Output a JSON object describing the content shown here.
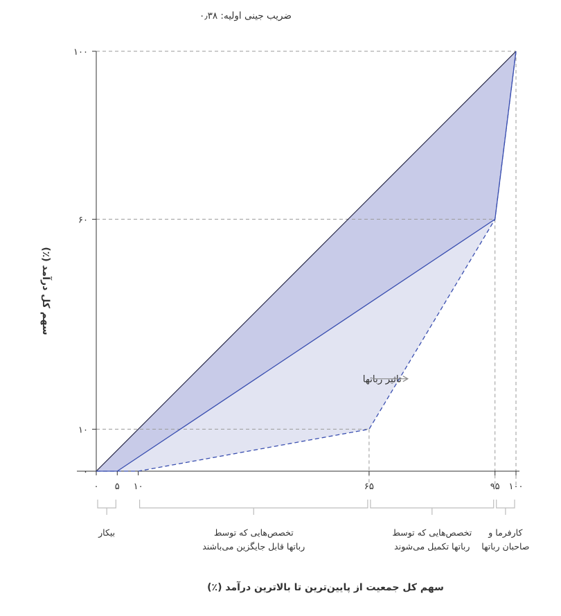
{
  "chart_data": {
    "type": "area",
    "subtitle": "ضریب جینی اولیه: ۰٫۳۸",
    "xlabel": "سهم کل جمعیت از پایین‌ترین تا بالاترین درآمد (٪)",
    "ylabel": "سهم کل درآمد (٪)",
    "xlim": [
      0,
      100
    ],
    "ylim": [
      0,
      100
    ],
    "x_ticks": [
      {
        "value": 0,
        "label": "۰"
      },
      {
        "value": 5,
        "label": "۵"
      },
      {
        "value": 10,
        "label": "۱۰"
      },
      {
        "value": 65,
        "label": "۶۵"
      },
      {
        "value": 95,
        "label": "۹۵"
      },
      {
        "value": 100,
        "label": "۱۰۰"
      }
    ],
    "y_ticks": [
      {
        "value": 0,
        "label": "۰"
      },
      {
        "value": 10,
        "label": "۱۰"
      },
      {
        "value": 60,
        "label": "۶۰"
      },
      {
        "value": 100,
        "label": "۱۰۰"
      }
    ],
    "series": [
      {
        "style": "equality-line",
        "color": "#1a1a3a",
        "x": [
          0,
          100
        ],
        "y": [
          0,
          100
        ]
      },
      {
        "style": "solid",
        "color": "#3a4fb0",
        "x": [
          0,
          5,
          95,
          100
        ],
        "y": [
          0,
          0,
          60,
          100
        ]
      },
      {
        "style": "dashed",
        "color": "#3a4fb0",
        "x": [
          0,
          10,
          65,
          95,
          100
        ],
        "y": [
          0,
          0,
          10,
          60,
          100
        ]
      }
    ],
    "fills": {
      "inner": "#c8cbe8",
      "outer": "#e2e4f2"
    },
    "groups": [
      {
        "from": 0,
        "to": 5,
        "lines": [
          "بیکار"
        ]
      },
      {
        "from": 10,
        "to": 65,
        "lines": [
          "تخصص‌هایی که توسط",
          "رباتها قابل جایگزین می‌باشند"
        ]
      },
      {
        "from": 65,
        "to": 95,
        "lines": [
          "تخصص‌هایی که توسط",
          "رباتها تکمیل می‌شوند"
        ]
      },
      {
        "from": 95,
        "to": 100,
        "lines": [
          "کارفرما و",
          "صاحبان رباتها"
        ]
      }
    ],
    "annotation": {
      "text": "تاثیر رباتها",
      "arrow": "right",
      "x": 63.5,
      "y": 22
    }
  }
}
